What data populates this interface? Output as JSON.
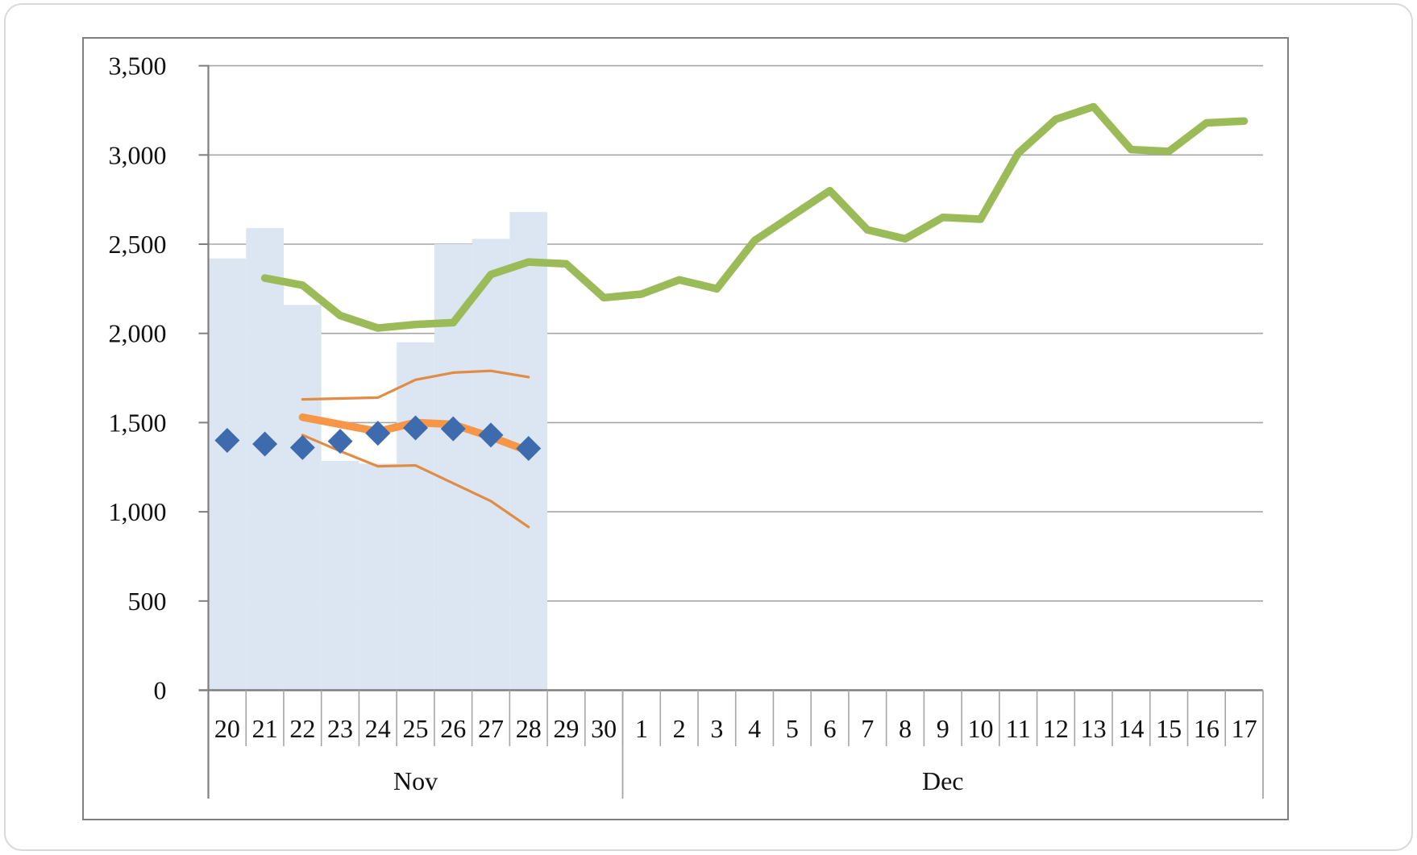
{
  "chart_data": {
    "type": "combo",
    "title": "",
    "y_axis": {
      "min": 0,
      "max": 3500,
      "step": 500,
      "tick_labels": [
        "3,500",
        "3,000",
        "2,500",
        "2,000",
        "1,500",
        "1,000",
        "500",
        "0"
      ],
      "grid": true
    },
    "x_axis": {
      "day_labels": [
        "20",
        "21",
        "22",
        "23",
        "24",
        "25",
        "26",
        "27",
        "28",
        "29",
        "30",
        "1",
        "2",
        "3",
        "4",
        "5",
        "6",
        "7",
        "8",
        "9",
        "10",
        "11",
        "12",
        "13",
        "14",
        "15",
        "16",
        "17"
      ],
      "month_groups": [
        {
          "label": "Nov",
          "count": 11
        },
        {
          "label": "Dec",
          "count": 17
        }
      ]
    },
    "series": [
      {
        "name": "light-blue-bars",
        "type": "bar",
        "color": "#dce6f2",
        "start_index": 0,
        "values": [
          2420,
          2590,
          2160,
          1285,
          1270,
          1950,
          2500,
          2530,
          2680
        ]
      },
      {
        "name": "orange-lower-thin-line",
        "type": "line",
        "color": "#e08c44",
        "width": 3.2,
        "start_index": 2,
        "values": [
          1430,
          1340,
          1255,
          1260,
          1160,
          1060,
          915
        ]
      },
      {
        "name": "orange-upper-thin-line",
        "type": "line",
        "color": "#e08c44",
        "width": 3.2,
        "start_index": 2,
        "values": [
          1630,
          1635,
          1640,
          1740,
          1780,
          1790,
          1755
        ]
      },
      {
        "name": "orange-thick-line",
        "type": "line",
        "color": "#f79646",
        "width": 9.5,
        "start_index": 2,
        "values": [
          1530,
          1490,
          1450,
          1500,
          1490,
          1420,
          1340
        ]
      },
      {
        "name": "green-line",
        "type": "line",
        "color": "#9bbb59",
        "width": 9.5,
        "start_index": 1,
        "values": [
          2310,
          2270,
          2100,
          2030,
          2050,
          2060,
          2330,
          2400,
          2390,
          2200,
          2220,
          2300,
          2250,
          2520,
          2660,
          2800,
          2580,
          2530,
          2650,
          2640,
          3010,
          3200,
          3270,
          3030,
          3020,
          3180,
          3190
        ]
      },
      {
        "name": "blue-diamond-markers",
        "type": "diamond",
        "color": "#3d6bad",
        "size": 31,
        "start_index": 0,
        "values": [
          1400,
          1380,
          1360,
          1395,
          1440,
          1470,
          1465,
          1430,
          1355
        ]
      }
    ],
    "colors": {
      "gridline": "#a6a6a6",
      "axis": "#7f7f7f",
      "text": "#111111",
      "plot_background": "#ffffff"
    },
    "legend": {
      "visible": false
    }
  }
}
